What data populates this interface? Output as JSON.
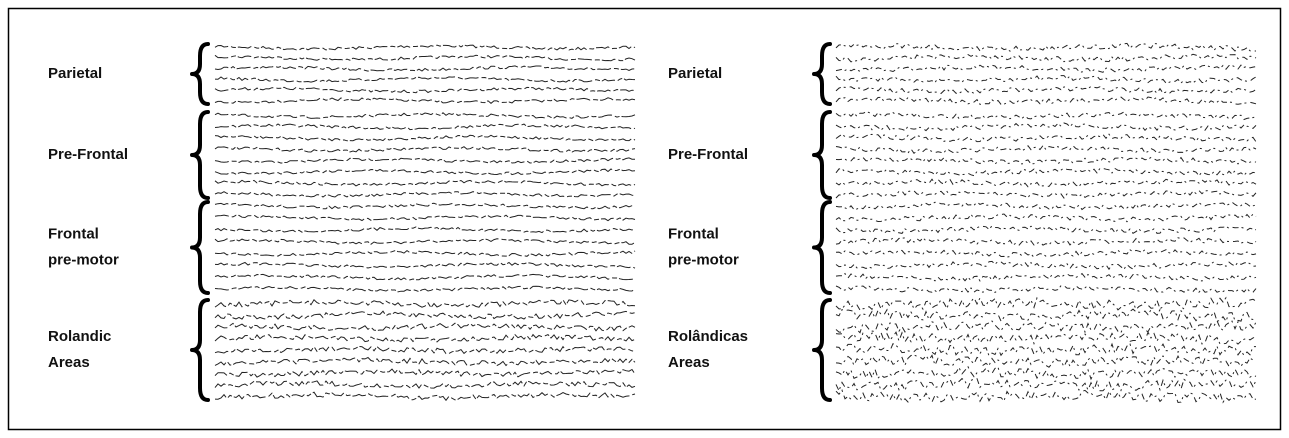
{
  "panels": [
    {
      "groups": [
        {
          "lines": [
            "Parietal"
          ]
        },
        {
          "lines": [
            "Pre-Frontal"
          ]
        },
        {
          "lines": [
            "Frontal",
            "pre-motor"
          ]
        },
        {
          "lines": [
            "Rolandic",
            "Areas"
          ]
        }
      ]
    },
    {
      "groups": [
        {
          "lines": [
            "Parietal"
          ]
        },
        {
          "lines": [
            "Pre-Frontal"
          ]
        },
        {
          "lines": [
            "Frontal",
            "pre-motor"
          ]
        },
        {
          "lines": [
            "Rolândicas",
            "Areas"
          ]
        }
      ]
    }
  ]
}
